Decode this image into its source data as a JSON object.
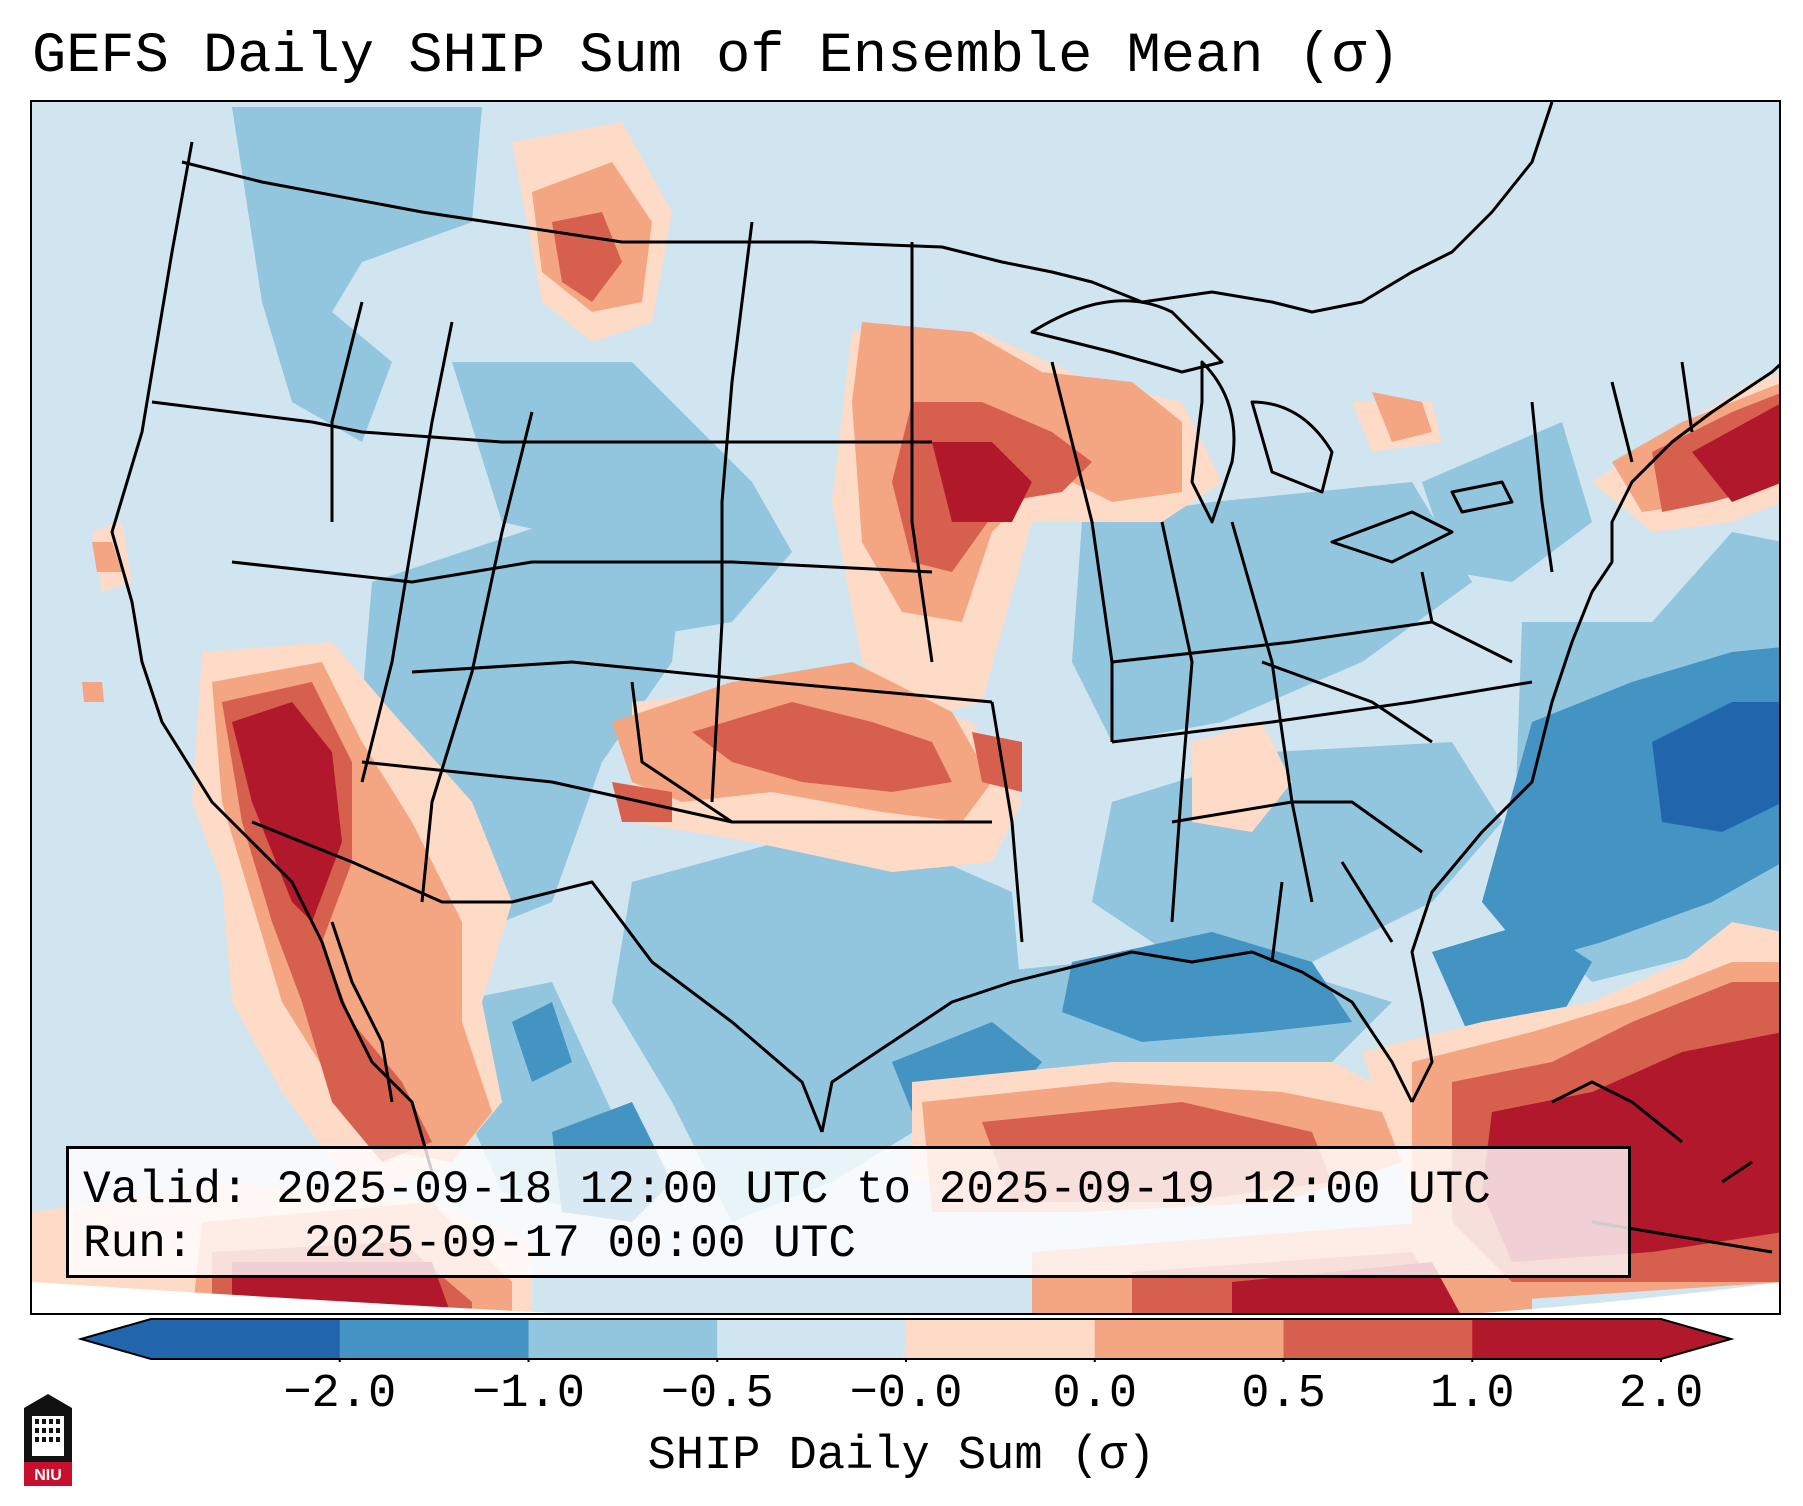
{
  "title": "GEFS Daily SHIP Sum of Ensemble Mean (σ)",
  "info": {
    "valid_label": "Valid:",
    "valid_value": "2025-09-18 12:00 UTC to 2025-09-19 12:00 UTC",
    "run_label": "Run:",
    "run_value": "2025-09-17 00:00 UTC"
  },
  "colorbar": {
    "label": "SHIP Daily Sum (σ)",
    "tick_labels": [
      "−2.0",
      "−1.0",
      "−0.5",
      "−0.0",
      "0.0",
      "0.5",
      "1.0",
      "2.0"
    ],
    "colors": [
      "#2166ac",
      "#4393c3",
      "#92c5de",
      "#d1e5f0",
      "#fddbc7",
      "#f4a582",
      "#d6604d",
      "#b2182b"
    ],
    "extend": "both"
  },
  "logo": {
    "text": "NIU",
    "color": "#c8102e"
  }
}
